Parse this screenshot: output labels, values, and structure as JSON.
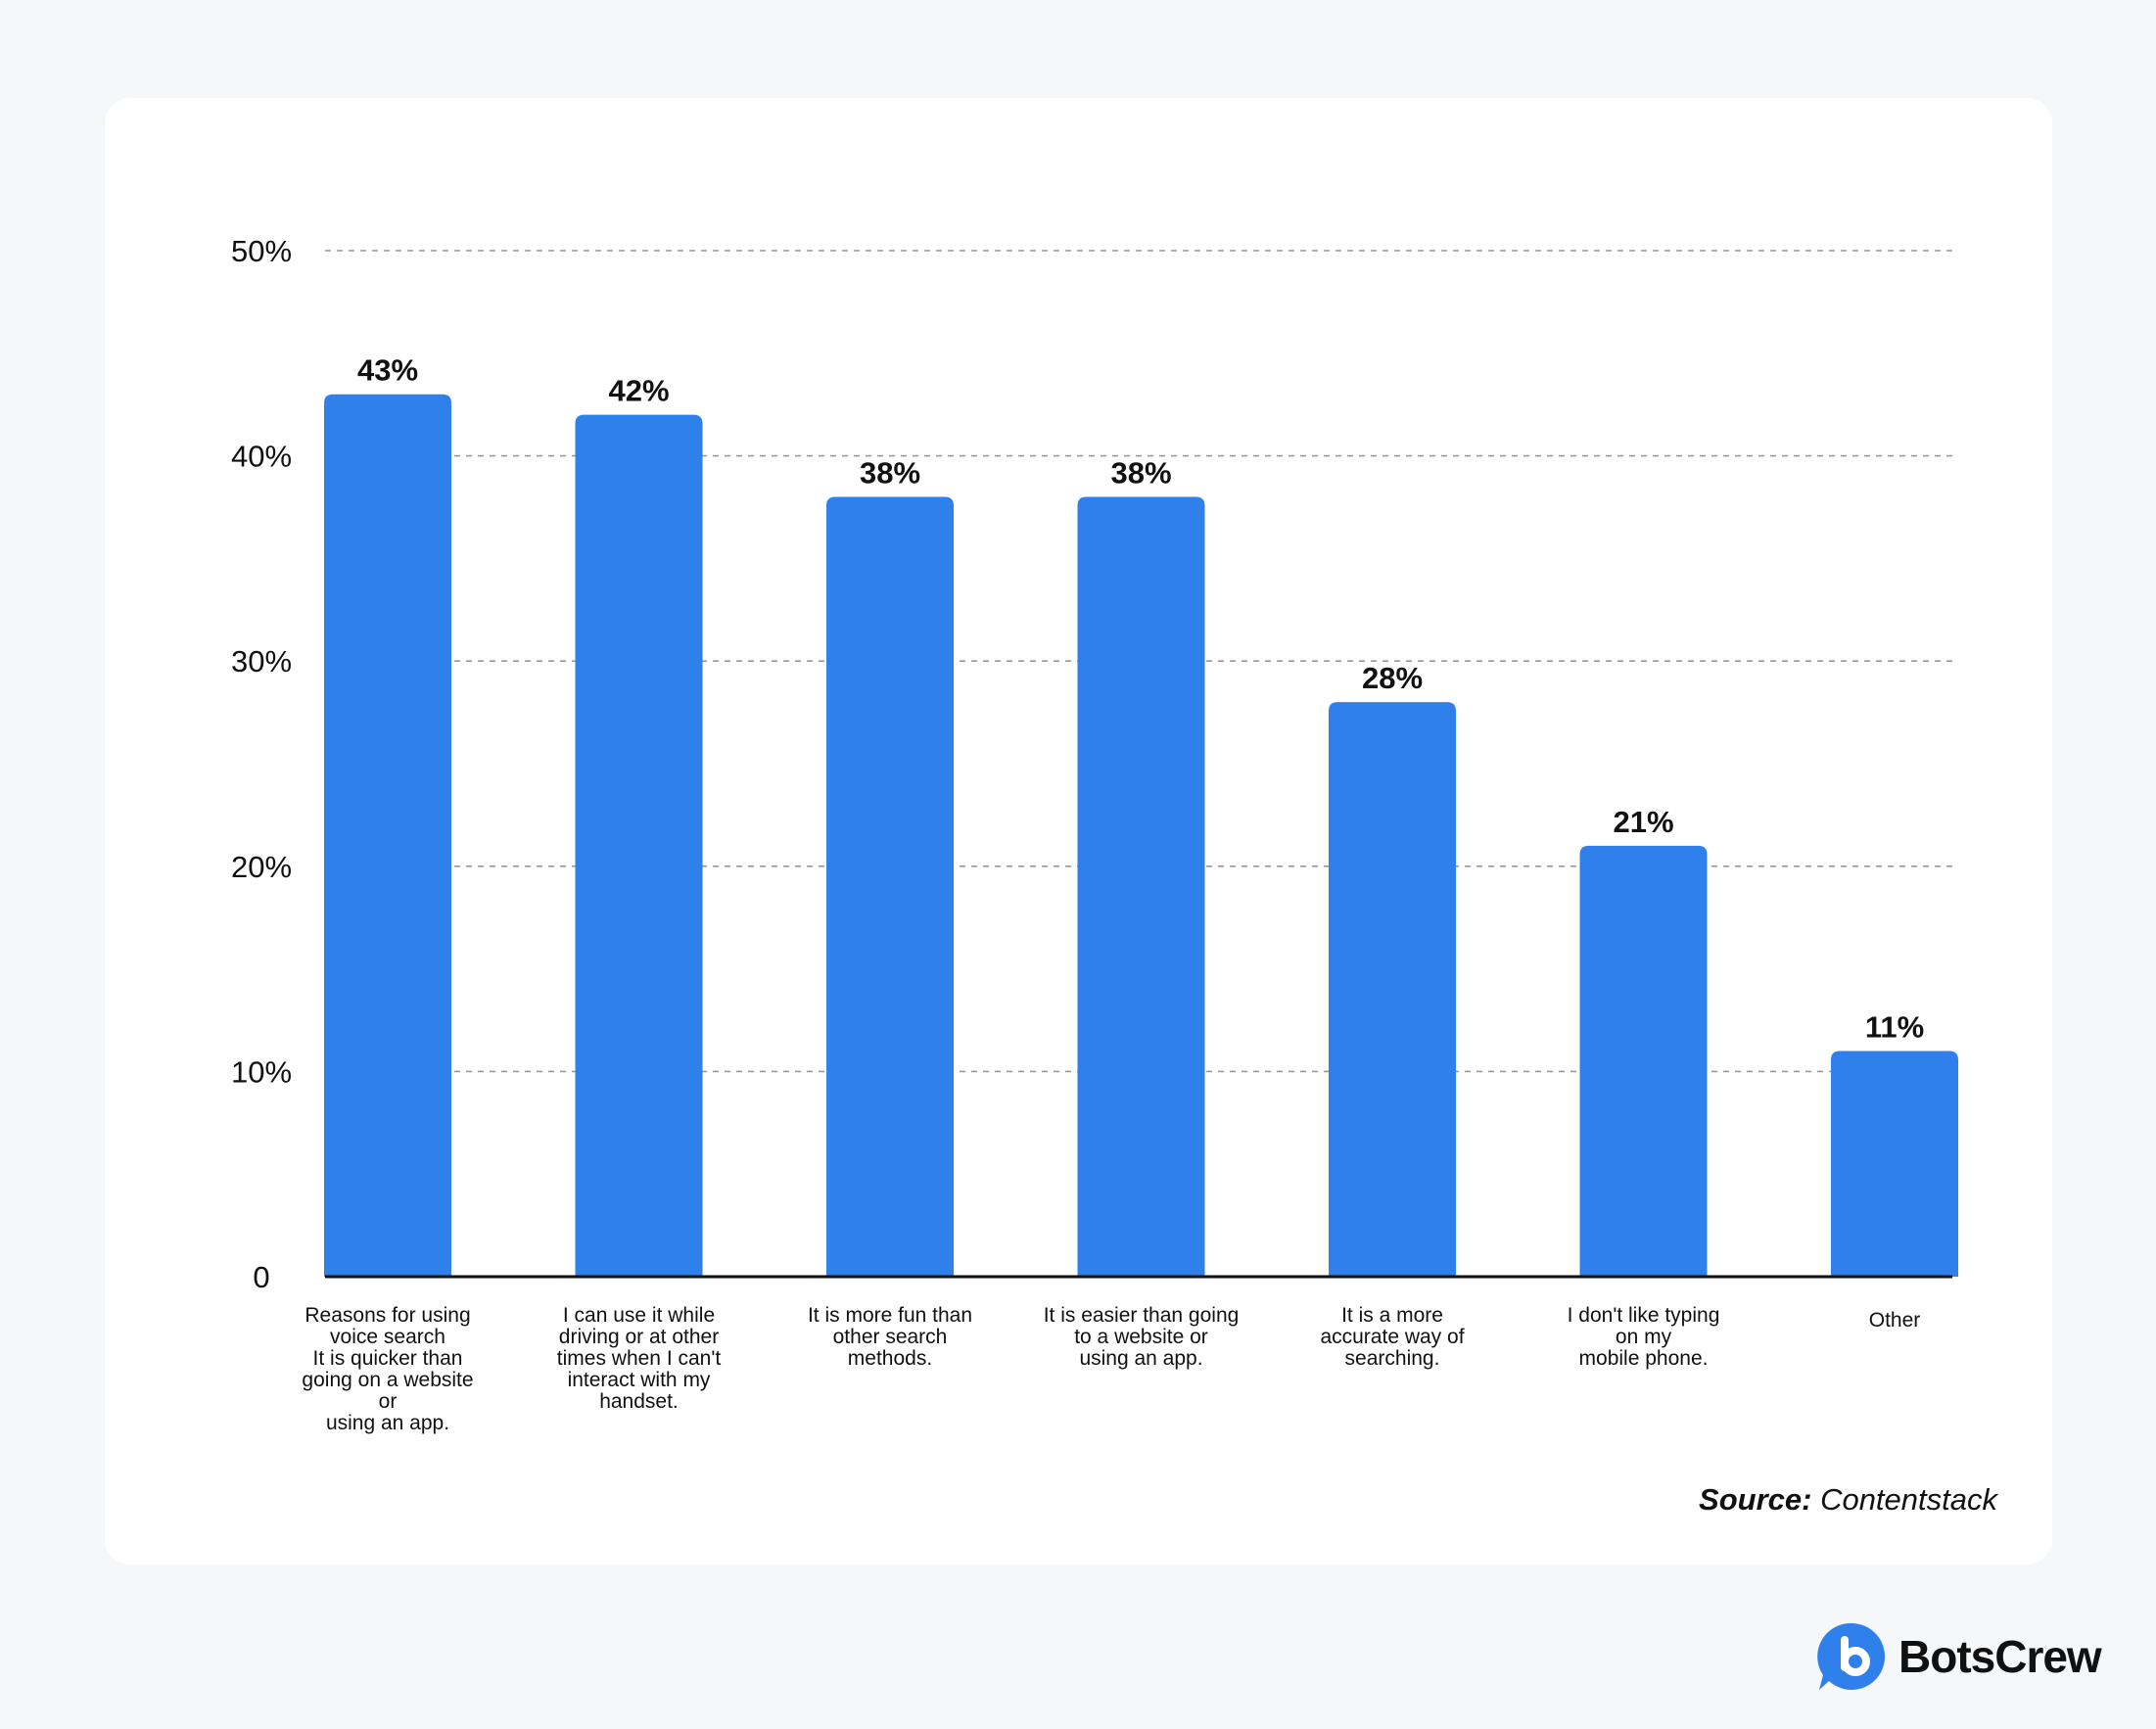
{
  "chart_data": {
    "type": "bar",
    "categories": [
      [
        "Reasons for using",
        "voice search",
        "It is quicker than",
        "going on a website",
        "or",
        "using an app."
      ],
      [
        "I can use it while",
        "driving or at other",
        "times when I can't",
        "interact with my",
        "handset."
      ],
      [
        "It is more fun than",
        "other search",
        "methods."
      ],
      [
        "It is easier than going",
        "to a website or",
        "using an app."
      ],
      [
        "It is a more",
        "accurate way of",
        "searching."
      ],
      [
        "I don't like typing",
        "on my",
        "mobile phone."
      ],
      [
        "Other"
      ]
    ],
    "values": [
      43,
      42,
      38,
      38,
      28,
      21,
      11
    ],
    "value_labels": [
      "43%",
      "42%",
      "38%",
      "38%",
      "28%",
      "21%",
      "11%"
    ],
    "y_ticks": [
      0,
      10,
      20,
      30,
      40,
      50
    ],
    "y_tick_labels": [
      "0",
      "10%",
      "20%",
      "30%",
      "40%",
      "50%"
    ],
    "ylim": [
      0,
      50
    ],
    "grid": true,
    "grid_style": "dashed",
    "colors": {
      "bar": "#3080eb",
      "text": "#111111",
      "grid": "#999999",
      "axis": "#111111"
    }
  },
  "source": {
    "label": "Source:",
    "name": "Contentstack"
  },
  "brand": {
    "name": "BotsCrew",
    "icon": "botscrew-b-logo-icon",
    "color": "#3080eb"
  }
}
